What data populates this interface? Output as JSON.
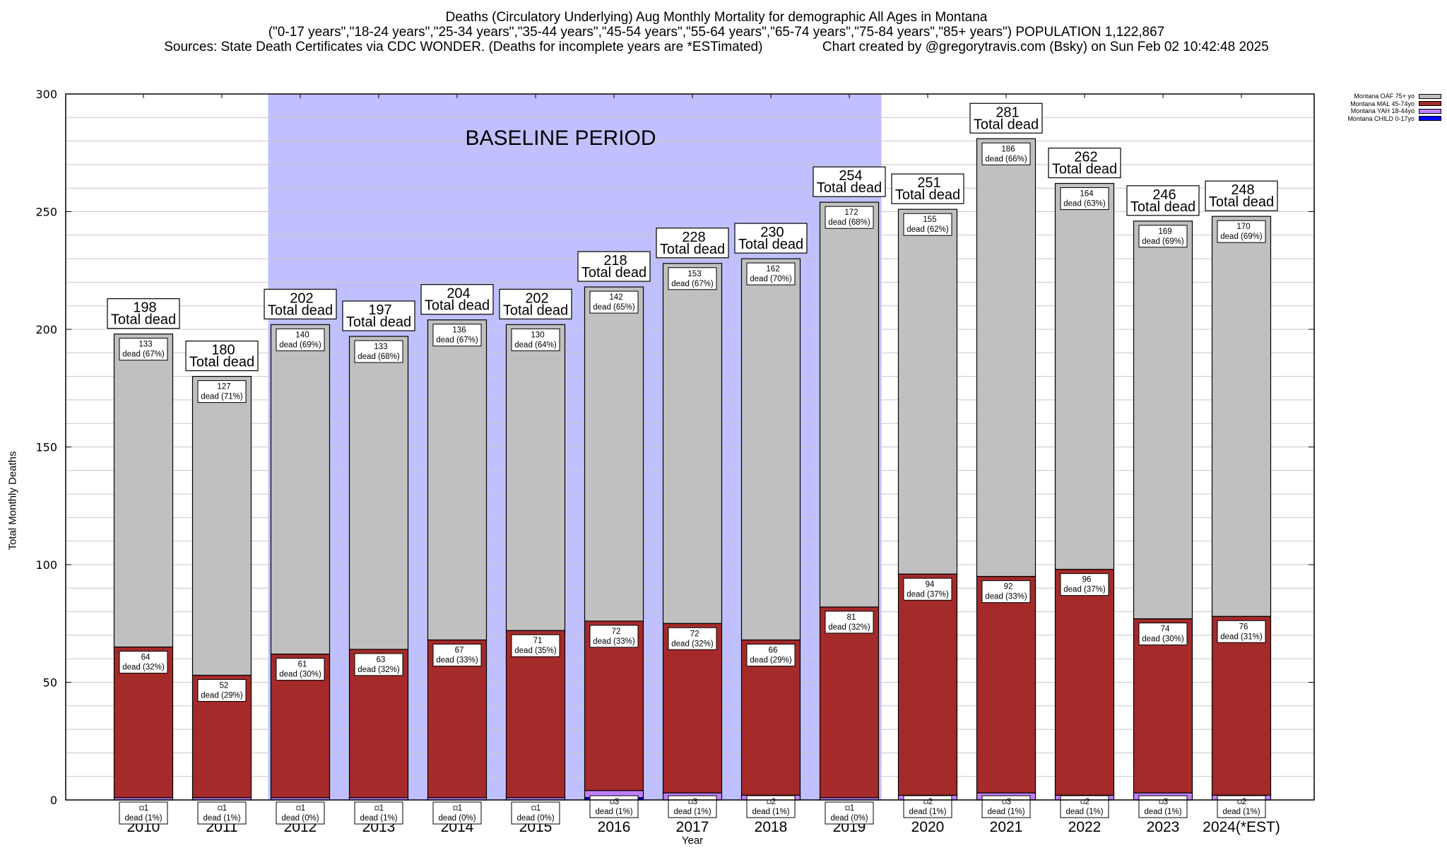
{
  "titles": {
    "line1": "Deaths (Circulatory Underlying) Aug Monthly Mortality for demographic All Ages in Montana",
    "line2": "(\"0-17 years\",\"18-24 years\",\"25-34 years\",\"35-44 years\",\"45-54 years\",\"55-64 years\",\"65-74 years\",\"75-84 years\",\"85+ years\") POPULATION 1,122,867",
    "line3": "Sources: State Death Certificates via CDC WONDER. (Deaths for incomplete years are *ESTimated)                Chart created by @gregorytravis.com (Bsky) on Sun Feb 02 10:42:48 2025"
  },
  "legend": [
    {
      "label": "Montana OAF 75+ yo",
      "color": "#c0c0c0"
    },
    {
      "label": "Montana MAL 45-74yo",
      "color": "#a52a2a"
    },
    {
      "label": "Montana YAH 18-44yo",
      "color": "#c080ff"
    },
    {
      "label": "Montana CHILD 0-17yo",
      "color": "#0000ff"
    }
  ],
  "chart_data": {
    "type": "bar",
    "stacked": true,
    "title": "Deaths (Circulatory Underlying) Aug Monthly Mortality for demographic All Ages in Montana",
    "xlabel": "Year",
    "ylabel": "Total Monthly Deaths",
    "ylim": [
      0,
      300
    ],
    "yticks": [
      0,
      50,
      100,
      150,
      200,
      250,
      300
    ],
    "grid": true,
    "legend_position": "top-right-outside",
    "annotation": {
      "text": "BASELINE PERIOD",
      "range": [
        "2012",
        "2019"
      ],
      "color": "#c0c0ff"
    },
    "categories": [
      "2010",
      "2011",
      "2012",
      "2013",
      "2014",
      "2015",
      "2016",
      "2017",
      "2018",
      "2019",
      "2020",
      "2021",
      "2022",
      "2023",
      "2024(*EST)"
    ],
    "totals": [
      198,
      180,
      202,
      197,
      204,
      202,
      218,
      228,
      230,
      254,
      251,
      281,
      262,
      246,
      248
    ],
    "total_label_suffix": "Total dead",
    "series": [
      {
        "name": "Montana CHILD 0-17yo",
        "color": "#0000ff",
        "values": [
          0,
          0,
          0,
          0,
          0,
          0,
          1,
          0,
          0,
          0,
          0,
          0,
          0,
          0,
          0
        ]
      },
      {
        "name": "Montana YAH 18-44yo",
        "color": "#c080ff",
        "values": [
          1,
          1,
          1,
          1,
          1,
          1,
          3,
          3,
          2,
          1,
          2,
          3,
          2,
          3,
          2
        ],
        "pct": [
          "1%",
          "1%",
          "0%",
          "1%",
          "0%",
          "0%",
          "1%",
          "1%",
          "1%",
          "0%",
          "1%",
          "1%",
          "1%",
          "1%",
          "1%"
        ]
      },
      {
        "name": "Montana MAL 45-74yo",
        "color": "#a52a2a",
        "values": [
          64,
          52,
          61,
          63,
          67,
          71,
          72,
          72,
          66,
          81,
          94,
          92,
          96,
          74,
          76
        ],
        "pct": [
          "32%",
          "29%",
          "30%",
          "32%",
          "33%",
          "35%",
          "33%",
          "32%",
          "29%",
          "32%",
          "37%",
          "33%",
          "37%",
          "30%",
          "31%"
        ]
      },
      {
        "name": "Montana OAF 75+ yo",
        "color": "#c0c0c0",
        "values": [
          133,
          127,
          140,
          133,
          136,
          130,
          142,
          153,
          162,
          172,
          155,
          186,
          164,
          169,
          170
        ],
        "pct": [
          "67%",
          "71%",
          "69%",
          "68%",
          "67%",
          "64%",
          "65%",
          "67%",
          "70%",
          "68%",
          "62%",
          "66%",
          "63%",
          "69%",
          "69%"
        ]
      }
    ]
  }
}
